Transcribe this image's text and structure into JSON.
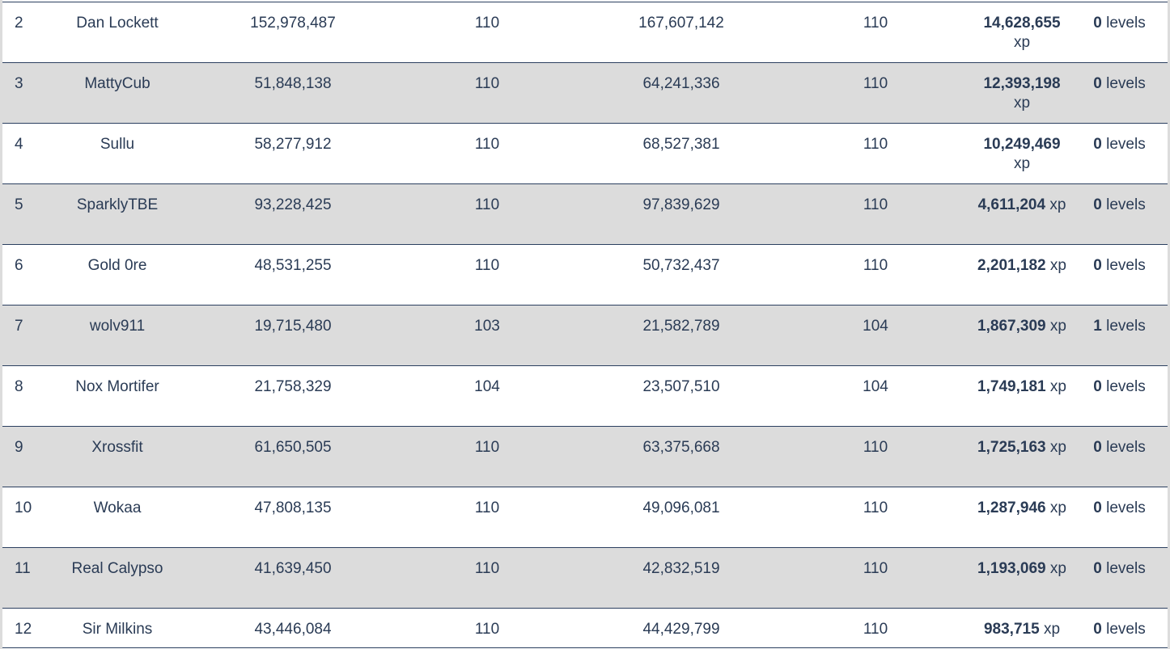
{
  "rows": [
    {
      "rank": "2",
      "name": "Dan Lockett",
      "xp_start": "152,978,487",
      "level_start": "110",
      "xp_now": "167,607,142",
      "level_now": "110",
      "gain": "14,628,655",
      "gain_unit": "xp",
      "levels": "0",
      "levels_unit": "levels"
    },
    {
      "rank": "3",
      "name": "MattyCub",
      "xp_start": "51,848,138",
      "level_start": "110",
      "xp_now": "64,241,336",
      "level_now": "110",
      "gain": "12,393,198",
      "gain_unit": "xp",
      "levels": "0",
      "levels_unit": "levels"
    },
    {
      "rank": "4",
      "name": "Sullu",
      "xp_start": "58,277,912",
      "level_start": "110",
      "xp_now": "68,527,381",
      "level_now": "110",
      "gain": "10,249,469",
      "gain_unit": "xp",
      "levels": "0",
      "levels_unit": "levels"
    },
    {
      "rank": "5",
      "name": "SparklyTBE",
      "xp_start": "93,228,425",
      "level_start": "110",
      "xp_now": "97,839,629",
      "level_now": "110",
      "gain": "4,611,204",
      "gain_unit": "xp",
      "levels": "0",
      "levels_unit": "levels"
    },
    {
      "rank": "6",
      "name": "Gold 0re",
      "xp_start": "48,531,255",
      "level_start": "110",
      "xp_now": "50,732,437",
      "level_now": "110",
      "gain": "2,201,182",
      "gain_unit": "xp",
      "levels": "0",
      "levels_unit": "levels"
    },
    {
      "rank": "7",
      "name": "wolv911",
      "xp_start": "19,715,480",
      "level_start": "103",
      "xp_now": "21,582,789",
      "level_now": "104",
      "gain": "1,867,309",
      "gain_unit": "xp",
      "levels": "1",
      "levels_unit": "levels"
    },
    {
      "rank": "8",
      "name": "Nox Mortifer",
      "xp_start": "21,758,329",
      "level_start": "104",
      "xp_now": "23,507,510",
      "level_now": "104",
      "gain": "1,749,181",
      "gain_unit": "xp",
      "levels": "0",
      "levels_unit": "levels"
    },
    {
      "rank": "9",
      "name": "Xrossfit",
      "xp_start": "61,650,505",
      "level_start": "110",
      "xp_now": "63,375,668",
      "level_now": "110",
      "gain": "1,725,163",
      "gain_unit": "xp",
      "levels": "0",
      "levels_unit": "levels"
    },
    {
      "rank": "10",
      "name": "Wokaa",
      "xp_start": "47,808,135",
      "level_start": "110",
      "xp_now": "49,096,081",
      "level_now": "110",
      "gain": "1,287,946",
      "gain_unit": "xp",
      "levels": "0",
      "levels_unit": "levels"
    },
    {
      "rank": "11",
      "name": "Real Calypso",
      "xp_start": "41,639,450",
      "level_start": "110",
      "xp_now": "42,832,519",
      "level_now": "110",
      "gain": "1,193,069",
      "gain_unit": "xp",
      "levels": "0",
      "levels_unit": "levels"
    },
    {
      "rank": "12",
      "name": "Sir Milkins",
      "xp_start": "43,446,084",
      "level_start": "110",
      "xp_now": "44,429,799",
      "level_now": "110",
      "gain": "983,715",
      "gain_unit": "xp",
      "levels": "0",
      "levels_unit": "levels"
    }
  ]
}
